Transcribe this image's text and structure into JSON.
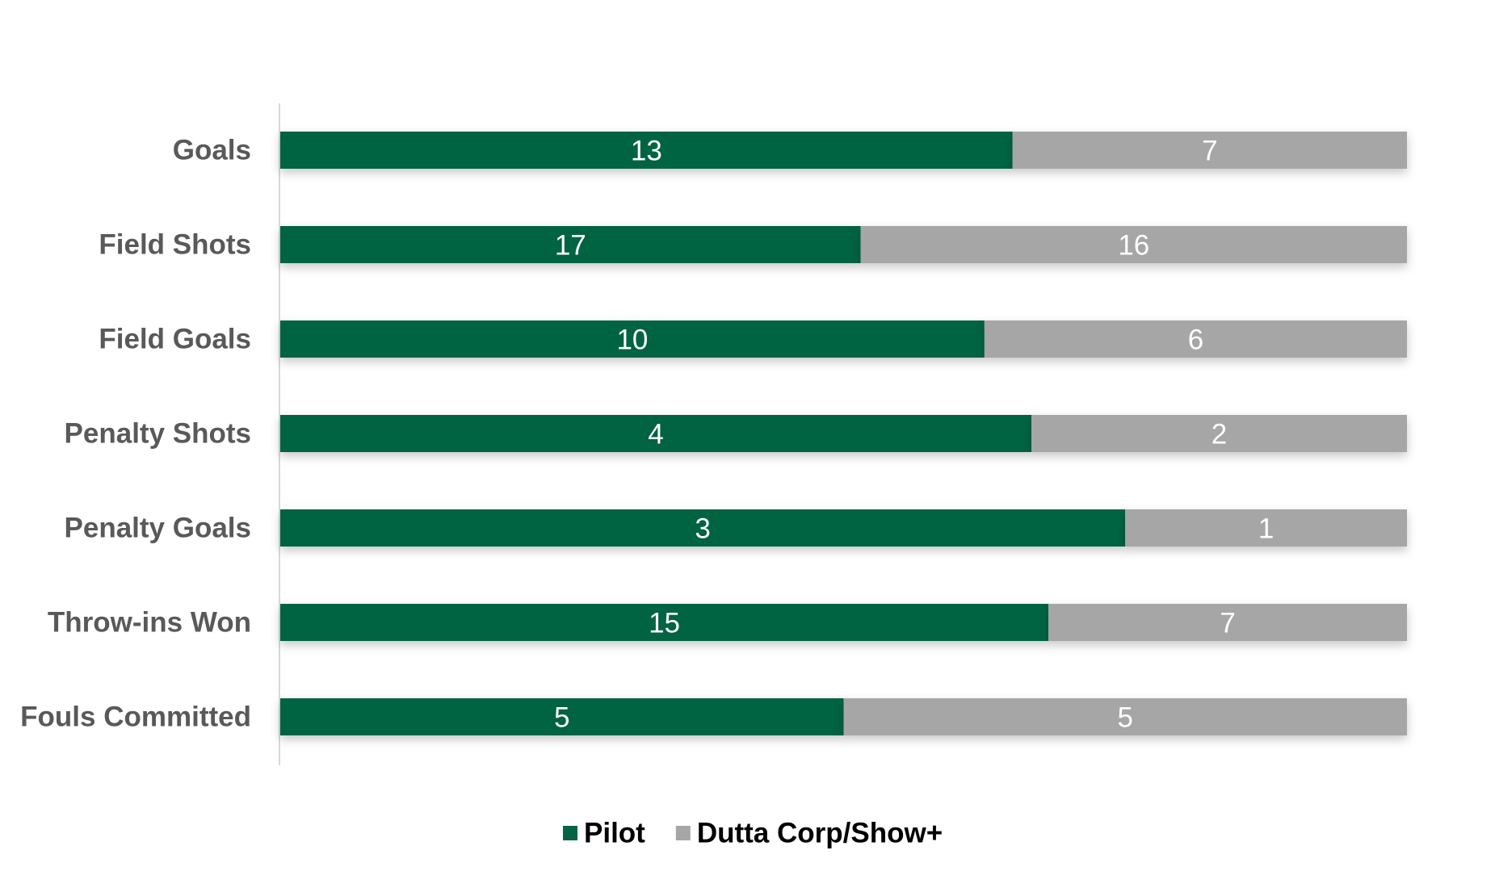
{
  "chart_data": {
    "type": "bar",
    "orientation": "horizontal",
    "stacking": "percent",
    "categories": [
      "Goals",
      "Field Shots",
      "Field Goals",
      "Penalty Shots",
      "Penalty Goals",
      "Throw-ins Won",
      "Fouls Committed"
    ],
    "series": [
      {
        "name": "Pilot",
        "values": [
          13,
          17,
          10,
          4,
          3,
          15,
          5
        ],
        "color": "#066443"
      },
      {
        "name": "Dutta Corp/Show+",
        "values": [
          7,
          16,
          6,
          2,
          1,
          7,
          5
        ],
        "color": "#a6a6a6"
      }
    ],
    "title": "",
    "xlabel": "",
    "ylabel": "",
    "grid": false,
    "legend": "bottom"
  }
}
